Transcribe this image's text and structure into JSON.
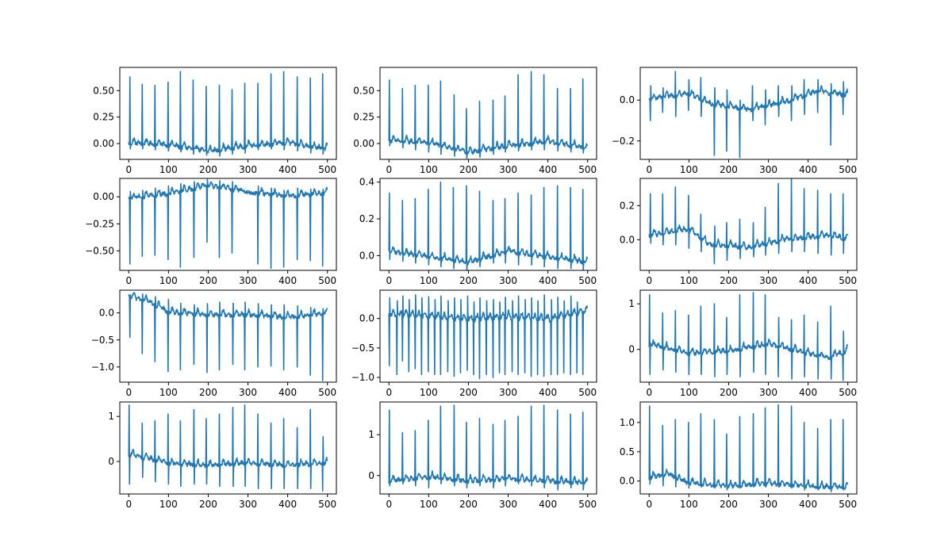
{
  "figure": {
    "background": "#ffffff",
    "line_color": "#1f77b4"
  },
  "chart_data": [
    {
      "type": "line",
      "x_range": [
        0,
        500
      ],
      "y_range": [
        -0.15,
        0.72
      ],
      "xticks": [
        0,
        100,
        200,
        300,
        400,
        500
      ],
      "yticks": [
        0.0,
        0.25,
        0.5
      ],
      "ytick_labels": [
        "0.00",
        "0.25",
        "0.50"
      ],
      "beat_positions": [
        3,
        34,
        66,
        99,
        130,
        162,
        195,
        228,
        260,
        292,
        325,
        358,
        390,
        424,
        457,
        488
      ],
      "peak_values": [
        0.63,
        0.56,
        0.55,
        0.58,
        0.68,
        0.6,
        0.54,
        0.55,
        0.51,
        0.57,
        0.57,
        0.66,
        0.68,
        0.63,
        0.62,
        0.66
      ],
      "trough_values": [
        -0.05,
        -0.05,
        -0.06,
        -0.07,
        -0.08,
        -0.1,
        -0.11,
        -0.12,
        -0.1,
        -0.09,
        -0.06,
        -0.05,
        -0.06,
        -0.07,
        -0.09,
        -0.1
      ],
      "baseline": [
        [
          0,
          0.0
        ],
        [
          100,
          -0.02
        ],
        [
          200,
          -0.08
        ],
        [
          300,
          -0.03
        ],
        [
          400,
          0.0
        ],
        [
          500,
          -0.06
        ]
      ]
    },
    {
      "type": "line",
      "x_range": [
        0,
        500
      ],
      "y_range": [
        -0.15,
        0.72
      ],
      "xticks": [
        0,
        100,
        200,
        300,
        400,
        500
      ],
      "yticks": [
        0.0,
        0.25,
        0.5
      ],
      "ytick_labels": [
        "0.00",
        "0.25",
        "0.50"
      ],
      "beat_positions": [
        1,
        34,
        66,
        99,
        130,
        164,
        195,
        228,
        262,
        292,
        325,
        358,
        390,
        424,
        457,
        488
      ],
      "peak_values": [
        0.6,
        0.52,
        0.55,
        0.55,
        0.59,
        0.46,
        0.33,
        0.4,
        0.41,
        0.45,
        0.65,
        0.68,
        0.65,
        0.52,
        0.52,
        0.61
      ],
      "trough_values": [
        -0.02,
        -0.04,
        -0.06,
        -0.08,
        -0.1,
        -0.12,
        -0.14,
        -0.13,
        -0.1,
        -0.08,
        -0.07,
        -0.06,
        -0.06,
        -0.07,
        -0.08,
        -0.09
      ],
      "baseline": [
        [
          0,
          0.02
        ],
        [
          100,
          0.0
        ],
        [
          200,
          -0.09
        ],
        [
          300,
          -0.03
        ],
        [
          400,
          0.01
        ],
        [
          500,
          -0.05
        ]
      ]
    },
    {
      "type": "line",
      "x_range": [
        0,
        500
      ],
      "y_range": [
        -0.29,
        0.16
      ],
      "xticks": [
        0,
        100,
        200,
        300,
        400,
        500
      ],
      "yticks": [
        -0.2,
        0.0
      ],
      "ytick_labels": [
        "−0.2",
        "0.0"
      ],
      "beat_positions": [
        3,
        34,
        66,
        99,
        130,
        164,
        195,
        228,
        260,
        292,
        325,
        358,
        390,
        424,
        457,
        488
      ],
      "peak_values": [
        0.07,
        0.06,
        0.14,
        0.1,
        0.11,
        0.06,
        0.05,
        0.0,
        0.07,
        0.05,
        0.07,
        0.07,
        0.1,
        0.1,
        0.08,
        0.09
      ],
      "trough_values": [
        -0.1,
        -0.06,
        -0.08,
        -0.05,
        -0.08,
        -0.27,
        -0.25,
        -0.28,
        -0.1,
        -0.12,
        -0.08,
        -0.1,
        -0.07,
        -0.06,
        -0.22,
        -0.07
      ],
      "baseline": [
        [
          0,
          0.0
        ],
        [
          100,
          0.03
        ],
        [
          150,
          -0.02
        ],
        [
          250,
          -0.05
        ],
        [
          350,
          -0.01
        ],
        [
          420,
          0.04
        ],
        [
          500,
          0.02
        ]
      ]
    },
    {
      "type": "line",
      "x_range": [
        0,
        500
      ],
      "y_range": [
        -0.68,
        0.17
      ],
      "xticks": [
        0,
        100,
        200,
        300,
        400,
        500
      ],
      "yticks": [
        -0.5,
        -0.25,
        0.0
      ],
      "ytick_labels": [
        "−0.50",
        "−0.25",
        "0.00"
      ],
      "beat_positions": [
        3,
        34,
        66,
        99,
        130,
        164,
        197,
        228,
        260,
        325,
        358,
        390,
        424,
        457,
        488
      ],
      "peak_values": [
        0.05,
        0.06,
        0.08,
        0.1,
        0.12,
        0.14,
        0.16,
        0.15,
        0.14,
        0.1,
        0.08,
        0.06,
        0.08,
        0.07,
        0.07
      ],
      "trough_values": [
        -0.62,
        -0.55,
        -0.54,
        -0.58,
        -0.65,
        -0.56,
        -0.42,
        -0.56,
        -0.52,
        -0.62,
        -0.66,
        -0.65,
        -0.58,
        -0.59,
        -0.64
      ],
      "baseline": [
        [
          0,
          -0.02
        ],
        [
          100,
          0.02
        ],
        [
          200,
          0.1
        ],
        [
          300,
          0.04
        ],
        [
          400,
          0.0
        ],
        [
          500,
          0.03
        ]
      ]
    },
    {
      "type": "line",
      "x_range": [
        0,
        500
      ],
      "y_range": [
        -0.08,
        0.42
      ],
      "xticks": [
        0,
        100,
        200,
        300,
        400,
        500
      ],
      "yticks": [
        0.0,
        0.2,
        0.4
      ],
      "ytick_labels": [
        "0.0",
        "0.2",
        "0.4"
      ],
      "beat_positions": [
        1,
        34,
        66,
        99,
        130,
        162,
        195,
        228,
        262,
        292,
        325,
        358,
        390,
        424,
        457,
        488
      ],
      "peak_values": [
        0.34,
        0.3,
        0.31,
        0.36,
        0.4,
        0.37,
        0.38,
        0.35,
        0.3,
        0.31,
        0.34,
        0.33,
        0.37,
        0.38,
        0.37,
        0.36
      ],
      "trough_values": [
        -0.02,
        -0.03,
        -0.04,
        -0.05,
        -0.06,
        -0.07,
        -0.08,
        -0.06,
        -0.04,
        -0.04,
        -0.05,
        -0.05,
        -0.06,
        -0.07,
        -0.07,
        -0.08
      ],
      "baseline": [
        [
          0,
          0.02
        ],
        [
          100,
          -0.01
        ],
        [
          200,
          -0.04
        ],
        [
          300,
          0.02
        ],
        [
          400,
          -0.01
        ],
        [
          500,
          -0.04
        ]
      ]
    },
    {
      "type": "line",
      "x_range": [
        0,
        500
      ],
      "y_range": [
        -0.18,
        0.36
      ],
      "xticks": [
        0,
        100,
        200,
        300,
        400,
        500
      ],
      "yticks": [
        0.0,
        0.2
      ],
      "ytick_labels": [
        "0.0",
        "0.2"
      ],
      "beat_positions": [
        3,
        34,
        66,
        99,
        130,
        164,
        195,
        228,
        262,
        292,
        325,
        358,
        390,
        424,
        457,
        488
      ],
      "peak_values": [
        0.27,
        0.27,
        0.31,
        0.26,
        0.15,
        0.08,
        0.1,
        0.12,
        0.1,
        0.19,
        0.33,
        0.36,
        0.3,
        0.29,
        0.27,
        0.27
      ],
      "trough_values": [
        -0.02,
        -0.03,
        -0.03,
        -0.05,
        -0.07,
        -0.14,
        -0.12,
        -0.11,
        -0.1,
        -0.09,
        -0.08,
        -0.07,
        -0.07,
        -0.08,
        -0.09,
        -0.08
      ],
      "baseline": [
        [
          0,
          0.02
        ],
        [
          100,
          0.06
        ],
        [
          150,
          -0.03
        ],
        [
          250,
          -0.05
        ],
        [
          350,
          0.0
        ],
        [
          450,
          0.02
        ],
        [
          500,
          0.0
        ]
      ]
    },
    {
      "type": "line",
      "x_range": [
        0,
        500
      ],
      "y_range": [
        -1.28,
        0.42
      ],
      "xticks": [
        0,
        100,
        200,
        300,
        400,
        500
      ],
      "yticks": [
        -1.0,
        -0.5,
        0.0
      ],
      "ytick_labels": [
        "−1.0",
        "−0.5",
        "0.0"
      ],
      "beat_positions": [
        3,
        34,
        66,
        99,
        130,
        164,
        197,
        228,
        262,
        292,
        325,
        358,
        390,
        424,
        457,
        488
      ],
      "peak_values": [
        0.33,
        0.35,
        0.3,
        0.25,
        0.18,
        0.15,
        0.17,
        0.2,
        0.18,
        0.2,
        0.17,
        0.15,
        0.15,
        0.13,
        0.1,
        0.08
      ],
      "trough_values": [
        -0.45,
        -0.75,
        -0.9,
        -1.08,
        -1.05,
        -0.95,
        -1.1,
        -1.05,
        -0.95,
        -1.05,
        -1.0,
        -0.98,
        -1.05,
        -1.0,
        -1.15,
        -1.25
      ],
      "baseline": [
        [
          0,
          0.3
        ],
        [
          50,
          0.2
        ],
        [
          100,
          0.0
        ],
        [
          200,
          -0.05
        ],
        [
          300,
          -0.05
        ],
        [
          400,
          -0.1
        ],
        [
          500,
          -0.02
        ]
      ]
    },
    {
      "type": "line",
      "x_range": [
        0,
        500
      ],
      "y_range": [
        -1.08,
        0.48
      ],
      "xticks": [
        0,
        100,
        200,
        300,
        400,
        500
      ],
      "yticks": [
        -1.0,
        -0.5,
        0.0
      ],
      "ytick_labels": [
        "−1.0",
        "−0.5",
        "0.0"
      ],
      "beat_positions": [
        1,
        20,
        34,
        50,
        66,
        82,
        99,
        115,
        130,
        148,
        164,
        180,
        197,
        213,
        228,
        245,
        262,
        278,
        292,
        310,
        325,
        342,
        358,
        374,
        390,
        408,
        424,
        440,
        457,
        473,
        488
      ],
      "peak_values": [
        0.35,
        0.3,
        0.38,
        0.32,
        0.4,
        0.35,
        0.37,
        0.32,
        0.38,
        0.3,
        0.35,
        0.32,
        0.38,
        0.28,
        0.35,
        0.3,
        0.32,
        0.28,
        0.36,
        0.3,
        0.38,
        0.32,
        0.35,
        0.3,
        0.4,
        0.32,
        0.36,
        0.3,
        0.38,
        0.28,
        0.12
      ],
      "trough_values": [
        -0.8,
        -0.95,
        -0.72,
        -0.9,
        -0.85,
        -0.95,
        -0.9,
        -0.95,
        -0.95,
        -0.9,
        -0.98,
        -0.92,
        -0.88,
        -0.95,
        -1.02,
        -0.95,
        -1.0,
        -0.92,
        -0.95,
        -0.9,
        -0.95,
        -0.92,
        -0.98,
        -0.95,
        -0.98,
        -0.95,
        -0.95,
        -0.92,
        -0.95,
        -0.92,
        -0.95
      ],
      "baseline": [
        [
          0,
          0.05
        ],
        [
          100,
          0.0
        ],
        [
          200,
          -0.05
        ],
        [
          300,
          0.0
        ],
        [
          400,
          -0.05
        ],
        [
          500,
          0.1
        ]
      ]
    },
    {
      "type": "line",
      "x_range": [
        0,
        500
      ],
      "y_range": [
        -0.72,
        1.3
      ],
      "xticks": [
        0,
        100,
        200,
        300,
        400,
        500
      ],
      "yticks": [
        0,
        1
      ],
      "ytick_labels": [
        "0",
        "1"
      ],
      "beat_positions": [
        1,
        34,
        66,
        99,
        130,
        164,
        195,
        228,
        262,
        292,
        325,
        358,
        390,
        424,
        457,
        488
      ],
      "peak_values": [
        1.2,
        0.8,
        0.85,
        0.75,
        0.95,
        1.0,
        0.7,
        1.2,
        1.25,
        1.2,
        0.7,
        0.65,
        0.75,
        0.6,
        0.95,
        0.4
      ],
      "trough_values": [
        -0.55,
        -0.45,
        -0.5,
        -0.55,
        -0.55,
        -0.6,
        -0.55,
        -0.6,
        -0.5,
        -0.55,
        -0.6,
        -0.65,
        -0.6,
        -0.65,
        -0.65,
        -0.68
      ],
      "baseline": [
        [
          0,
          0.1
        ],
        [
          100,
          -0.1
        ],
        [
          200,
          -0.05
        ],
        [
          300,
          0.1
        ],
        [
          400,
          -0.1
        ],
        [
          450,
          -0.2
        ],
        [
          500,
          -0.05
        ]
      ]
    },
    {
      "type": "line",
      "x_range": [
        0,
        500
      ],
      "y_range": [
        -0.72,
        1.32
      ],
      "xticks": [
        0,
        100,
        200,
        300,
        400,
        500
      ],
      "yticks": [
        0,
        1
      ],
      "ytick_labels": [
        "0",
        "1"
      ],
      "beat_positions": [
        1,
        34,
        66,
        99,
        130,
        164,
        195,
        228,
        262,
        292,
        325,
        358,
        390,
        424,
        457,
        488
      ],
      "peak_values": [
        1.25,
        0.85,
        0.9,
        1.05,
        0.9,
        1.15,
        0.95,
        1.05,
        1.2,
        1.25,
        1.05,
        0.85,
        0.95,
        0.75,
        1.15,
        0.55
      ],
      "trough_values": [
        -0.5,
        -0.35,
        -0.45,
        -0.5,
        -0.55,
        -0.5,
        -0.5,
        -0.55,
        -0.55,
        -0.55,
        -0.6,
        -0.6,
        -0.6,
        -0.6,
        -0.6,
        -0.65
      ],
      "baseline": [
        [
          0,
          0.15
        ],
        [
          100,
          -0.05
        ],
        [
          200,
          -0.1
        ],
        [
          300,
          -0.05
        ],
        [
          400,
          -0.1
        ],
        [
          500,
          -0.05
        ]
      ]
    },
    {
      "type": "line",
      "x_range": [
        0,
        500
      ],
      "y_range": [
        -0.45,
        1.8
      ],
      "xticks": [
        0,
        100,
        200,
        300,
        400,
        500
      ],
      "yticks": [
        0,
        1
      ],
      "ytick_labels": [
        "0",
        "1"
      ],
      "beat_positions": [
        1,
        34,
        66,
        99,
        130,
        164,
        195,
        228,
        262,
        292,
        325,
        358,
        390,
        424,
        457,
        488
      ],
      "peak_values": [
        1.6,
        1.05,
        1.1,
        1.35,
        1.7,
        1.72,
        1.3,
        1.4,
        1.25,
        1.35,
        1.45,
        1.7,
        1.72,
        1.6,
        1.5,
        1.55
      ],
      "trough_values": [
        -0.25,
        -0.2,
        -0.25,
        -0.3,
        -0.2,
        -0.25,
        -0.3,
        -0.25,
        -0.3,
        -0.25,
        -0.2,
        -0.25,
        -0.3,
        -0.35,
        -0.3,
        -0.35
      ],
      "baseline": [
        [
          0,
          -0.15
        ],
        [
          100,
          -0.05
        ],
        [
          200,
          -0.15
        ],
        [
          300,
          -0.1
        ],
        [
          400,
          -0.15
        ],
        [
          500,
          -0.2
        ]
      ]
    },
    {
      "type": "line",
      "x_range": [
        0,
        500
      ],
      "y_range": [
        -0.22,
        1.35
      ],
      "xticks": [
        0,
        100,
        200,
        300,
        400,
        500
      ],
      "yticks": [
        0.0,
        0.5,
        1.0
      ],
      "ytick_labels": [
        "0.0",
        "0.5",
        "1.0"
      ],
      "beat_positions": [
        1,
        34,
        66,
        99,
        130,
        164,
        195,
        228,
        262,
        292,
        325,
        358,
        390,
        424,
        457,
        488
      ],
      "peak_values": [
        1.28,
        0.95,
        1.05,
        1.0,
        1.15,
        1.05,
        0.8,
        1.1,
        1.15,
        1.25,
        1.3,
        1.28,
        1.0,
        0.9,
        1.05,
        1.05
      ],
      "trough_values": [
        -0.05,
        -0.08,
        -0.1,
        -0.12,
        -0.1,
        -0.12,
        -0.15,
        -0.12,
        -0.1,
        -0.1,
        -0.1,
        -0.12,
        -0.15,
        -0.15,
        -0.18,
        -0.15
      ],
      "baseline": [
        [
          0,
          0.05
        ],
        [
          50,
          0.1
        ],
        [
          100,
          -0.05
        ],
        [
          200,
          -0.1
        ],
        [
          300,
          -0.05
        ],
        [
          400,
          -0.1
        ],
        [
          500,
          -0.12
        ]
      ]
    }
  ]
}
